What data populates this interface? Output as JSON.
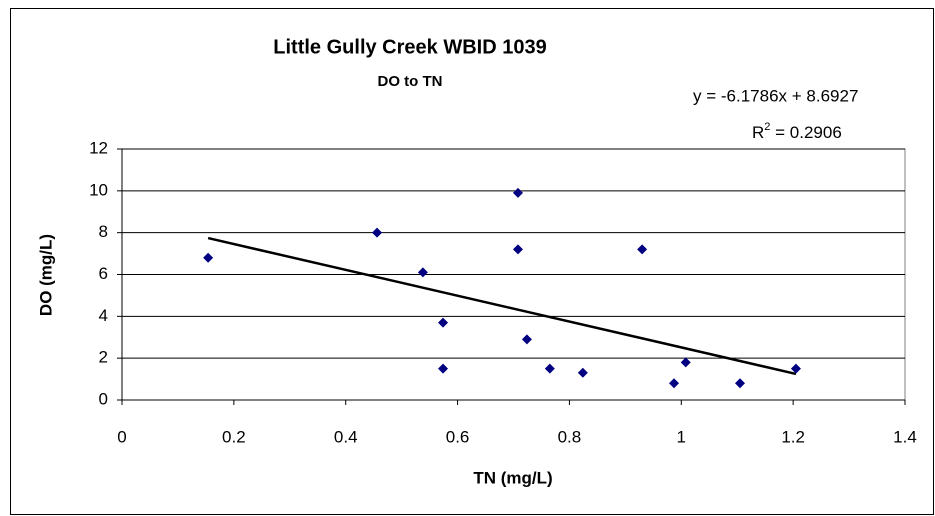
{
  "chart_data": {
    "type": "scatter",
    "title": "Little Gully Creek WBID 1039",
    "subtitle": "DO to TN",
    "x_label": "TN (mg/L)",
    "y_label": "DO (mg/L)",
    "series": [
      {
        "name": "DO",
        "color": "#000080",
        "x": [
          0.154,
          0.456,
          0.538,
          0.574,
          0.574,
          0.708,
          0.708,
          0.724,
          0.765,
          0.824,
          0.93,
          0.987,
          1.008,
          1.105,
          1.205
        ],
        "values": [
          6.8,
          8.0,
          6.1,
          3.7,
          1.5,
          9.9,
          7.2,
          2.9,
          1.5,
          1.3,
          7.2,
          0.8,
          1.8,
          0.8,
          1.5
        ]
      }
    ],
    "trendline": {
      "slope": -6.1786,
      "intercept": 8.6927,
      "color": "#000000",
      "equation": "y = -6.1786x + 8.6927",
      "r2_symbol": "R",
      "r2_exponent": "2",
      "r2_value": " = 0.2906"
    },
    "xlim": [
      0,
      1.4
    ],
    "xticks": [
      0,
      0.2,
      0.4,
      0.6,
      0.8,
      1,
      1.2,
      1.4
    ],
    "ylim": [
      0,
      12
    ],
    "yticks": [
      0,
      2,
      4,
      6,
      8,
      10,
      12
    ],
    "grid": true
  }
}
